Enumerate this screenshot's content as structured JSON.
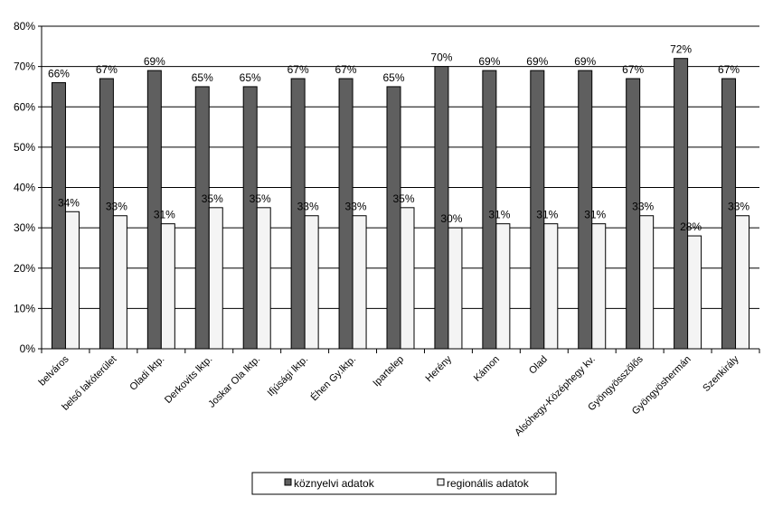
{
  "chart_data": {
    "type": "bar",
    "categories": [
      "belváros",
      "belső lakóterület",
      "Oladi lktp.",
      "Derkovits lktp.",
      "Joskar Ola lktp.",
      "Ifjúsági lktp.",
      "Éhen Gy.lktp.",
      "Ipartelep",
      "Herény",
      "Kámon",
      "Olad",
      "Alsóhegy-Középhegy kv.",
      "Gyöngyösszőlős",
      "Gyöngyöshermán",
      "Szenkirály"
    ],
    "series": [
      {
        "name": "köznyelvi adatok",
        "values": [
          66,
          67,
          69,
          65,
          65,
          67,
          67,
          65,
          70,
          69,
          69,
          69,
          67,
          72,
          67
        ],
        "labels": [
          "66%",
          "67%",
          "69%",
          "65%",
          "65%",
          "67%",
          "67%",
          "65%",
          "70%",
          "69%",
          "69%",
          "69%",
          "67%",
          "72%",
          "67%"
        ],
        "color": "#5f5f5f"
      },
      {
        "name": "regionális adatok",
        "values": [
          34,
          33,
          31,
          35,
          35,
          33,
          33,
          35,
          30,
          31,
          31,
          31,
          33,
          28,
          33
        ],
        "labels": [
          "34%",
          "33%",
          "31%",
          "35%",
          "35%",
          "33%",
          "33%",
          "35%",
          "30%",
          "31%",
          "31%",
          "31%",
          "33%",
          "28%",
          "33%"
        ],
        "color": "#f4f4f4"
      }
    ],
    "ylim": [
      0,
      80
    ],
    "yticks": [
      "0%",
      "10%",
      "20%",
      "30%",
      "40%",
      "50%",
      "60%",
      "70%",
      "80%"
    ],
    "grid": true,
    "legend_position": "bottom"
  }
}
